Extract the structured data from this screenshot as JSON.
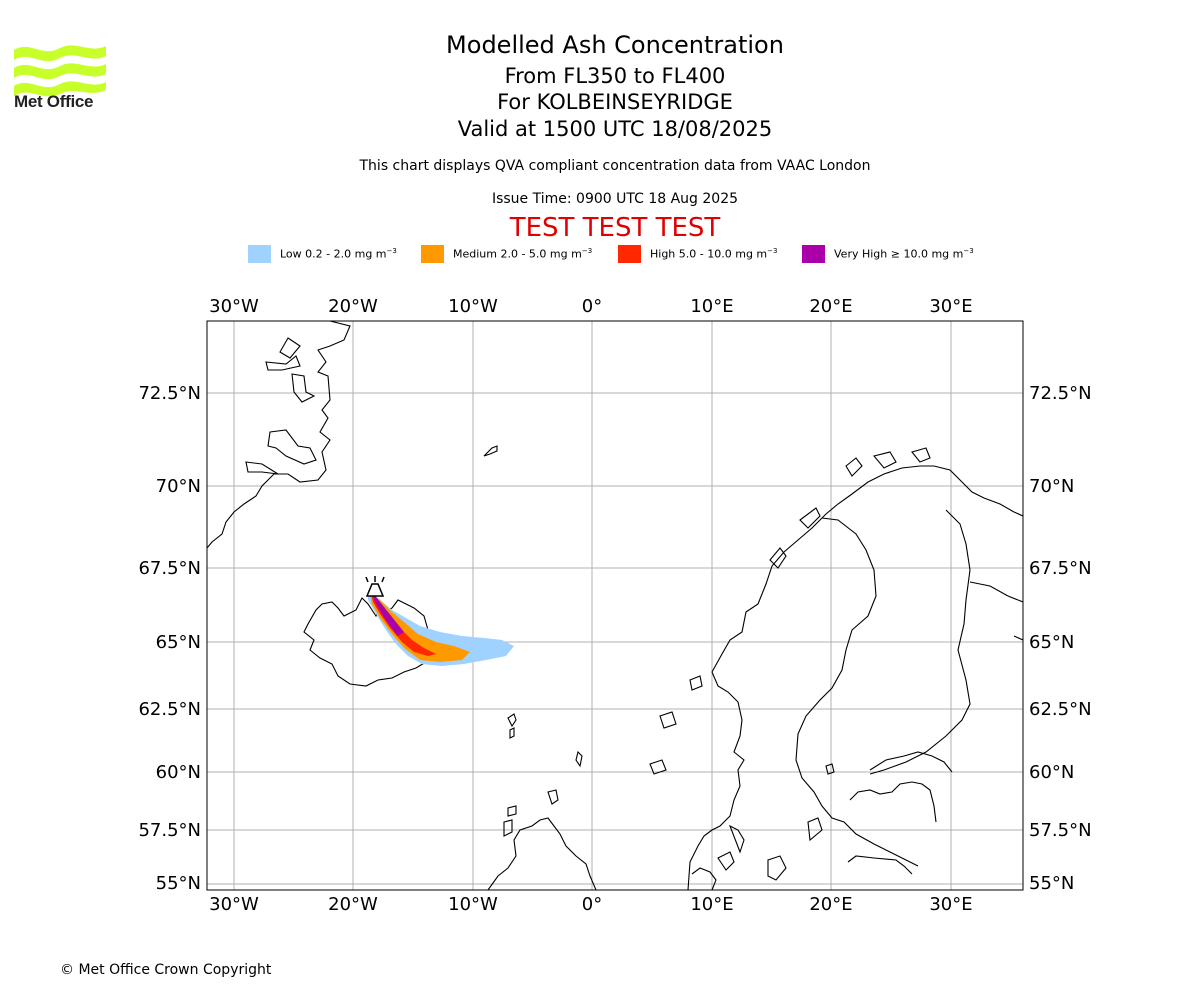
{
  "header": {
    "logo_text": "Met Office",
    "title": "Modelled Ash Concentration",
    "subtitle_levels": "From FL350 to FL400",
    "subtitle_volcano": "For KOLBEINSEYRIDGE",
    "subtitle_valid": "Valid at 1500 UTC 18/08/2025",
    "description": "This chart displays QVA compliant concentration data from VAAC London",
    "issue_time": "Issue Time: 0900 UTC 18 Aug 2025",
    "test_banner": "TEST TEST TEST"
  },
  "legend": [
    {
      "label": "Low 0.2 - 2.0 mg m",
      "unit_exp": "−3",
      "color": "#a0d2ff"
    },
    {
      "label": "Medium 2.0 - 5.0 mg m",
      "unit_exp": "−3",
      "color": "#ff9900"
    },
    {
      "label": "High 5.0 - 10.0 mg m",
      "unit_exp": "−3",
      "color": "#ff2800"
    },
    {
      "label": "Very High  ≥  10.0 mg m",
      "unit_exp": "−3",
      "color": "#aa00aa"
    }
  ],
  "map": {
    "lon_ticks": [
      "30°W",
      "20°W",
      "10°W",
      "0°",
      "10°E",
      "20°E",
      "30°E"
    ],
    "lat_ticks": [
      "72.5°N",
      "70°N",
      "67.5°N",
      "65°N",
      "62.5°N",
      "60°N",
      "57.5°N",
      "55°N"
    ],
    "volcano_icon": "volcano-icon",
    "coastline_color": "#000000",
    "grid_color": "#b0b0b0"
  },
  "footer": {
    "copyright": "© Met Office Crown Copyright"
  }
}
